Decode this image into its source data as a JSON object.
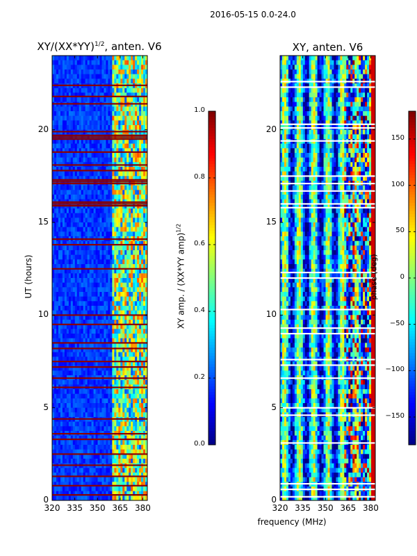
{
  "suptitle": "2016-05-15 0.0-24.0",
  "colors": {
    "background": "#ffffff",
    "flagged_red": "#8b0000",
    "flagged_white": "#ffffff",
    "jet_low": "#00008f",
    "jet_high": "#800000"
  },
  "chart_data": [
    {
      "type": "heatmap",
      "title_main": "XY/(XX*YY)",
      "title_sup": "1/2",
      "title_tail": ", anten. V6",
      "xlabel": "",
      "ylabel": "UT (hours)",
      "xlim": [
        320,
        383
      ],
      "ylim": [
        0,
        24
      ],
      "xticks": [
        320,
        335,
        350,
        365,
        380
      ],
      "yticks": [
        0,
        5,
        10,
        15,
        20
      ],
      "bright_band_start_mhz": 360,
      "flagged_rows_hours": [
        0.3,
        0.8,
        1.3,
        1.9,
        2.5,
        3.3,
        3.6,
        4.4,
        6.1,
        6.6,
        7.2,
        7.5,
        8.2,
        8.5,
        9.5,
        10.0,
        12.5,
        13.8,
        14.1,
        15.9,
        16.0,
        16.1,
        17.1,
        17.2,
        17.3,
        17.8,
        18.1,
        18.8,
        19.5,
        19.6,
        19.7,
        19.9,
        21.4,
        21.8,
        22.4
      ],
      "colorbar": {
        "label_main": "XY amp. / (XX*YY amp)",
        "label_sup": "1/2",
        "range": [
          0.0,
          1.0
        ],
        "ticks": [
          "0.0",
          "0.2",
          "0.4",
          "0.6",
          "0.8",
          "1.0"
        ],
        "tick_values": [
          0.0,
          0.2,
          0.4,
          0.6,
          0.8,
          1.0
        ]
      }
    },
    {
      "type": "heatmap",
      "title_main": "XY, anten. V6",
      "xlabel": "frequency (MHz)",
      "ylabel": "",
      "xlim": [
        320,
        383
      ],
      "ylim": [
        0,
        24
      ],
      "xticks": [
        320,
        335,
        350,
        365,
        380
      ],
      "yticks": [
        0,
        5,
        10,
        15,
        20
      ],
      "flagged_rows_hours": [
        0.2,
        0.6,
        0.9,
        3.1,
        4.6,
        5.0,
        6.6,
        7.3,
        7.6,
        9.0,
        9.3,
        10.3,
        12.0,
        12.3,
        15.8,
        16.0,
        16.7,
        17.1,
        17.5,
        19.4,
        20.1,
        20.3,
        22.3,
        22.6
      ],
      "colorbar": {
        "label_main": "phase (deg)",
        "range": [
          -180,
          180
        ],
        "ticks": [
          "−150",
          "−100",
          "−50",
          "0",
          "50",
          "100",
          "150"
        ],
        "tick_values": [
          -150,
          -100,
          -50,
          0,
          50,
          100,
          150
        ]
      }
    }
  ]
}
